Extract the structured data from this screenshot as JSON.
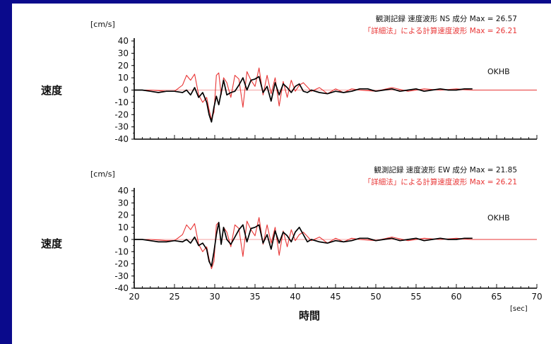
{
  "chart_data": [
    {
      "type": "line",
      "station": "OKHB",
      "row_label": "速度",
      "yunit": "[cm/s]",
      "ylim": [
        -40,
        40
      ],
      "yticks": [
        "40",
        "30",
        "20",
        "10",
        "0",
        "-10",
        "-20",
        "-30",
        "-40"
      ],
      "xlim": [
        20,
        70
      ],
      "legend": {
        "observed": "観測記録 速度波形 NS 成分 Max =  26.57",
        "computed": "「詳細法」による計算速度波形 Max =  26.21"
      },
      "series": [
        {
          "name": "観測記録 速度波形 NS 成分",
          "color": "#000000",
          "x": [
            20,
            21,
            22,
            23,
            24,
            25,
            26,
            26.5,
            27,
            27.5,
            28,
            28.5,
            29,
            29.3,
            29.6,
            29.9,
            30.2,
            30.5,
            30.8,
            31.1,
            31.5,
            32,
            32.5,
            33,
            33.5,
            34,
            34.5,
            35,
            35.5,
            36,
            36.5,
            37,
            37.5,
            38,
            38.5,
            39,
            39.5,
            40,
            40.5,
            41,
            41.5,
            42,
            43,
            44,
            45,
            46,
            47,
            48,
            49,
            50,
            51,
            52,
            53,
            54,
            55,
            56,
            57,
            58,
            59,
            60,
            61,
            62
          ],
          "y": [
            0,
            0,
            -1,
            -2,
            -1,
            -1,
            -2,
            0,
            -4,
            2,
            -6,
            -2,
            -10,
            -20,
            -26,
            -14,
            -5,
            -12,
            -2,
            8,
            -4,
            -2,
            -1,
            4,
            10,
            0,
            8,
            9,
            11,
            -2,
            3,
            -9,
            6,
            -4,
            5,
            2,
            -2,
            3,
            5,
            -1,
            -2,
            0,
            -2,
            -3,
            -1,
            -2,
            -1,
            1,
            1,
            -1,
            0,
            1,
            -1,
            0,
            1,
            -1,
            0,
            1,
            0,
            0,
            1,
            1
          ]
        },
        {
          "name": "「詳細法」による計算速度波形",
          "color": "#e83535",
          "x": [
            20,
            22,
            24,
            25,
            26,
            26.5,
            27,
            27.5,
            28,
            28.5,
            29,
            29.3,
            29.6,
            29.9,
            30.2,
            30.5,
            30.8,
            31.1,
            31.5,
            32,
            32.5,
            33,
            33.5,
            34,
            34.5,
            35,
            35.5,
            36,
            36.5,
            37,
            37.5,
            38,
            38.5,
            39,
            39.5,
            40,
            40.5,
            41,
            42,
            43,
            44,
            45,
            46,
            47,
            48,
            50,
            52,
            54,
            56,
            58,
            60,
            62,
            65,
            70
          ],
          "y": [
            0,
            0,
            -1,
            -1,
            4,
            12,
            8,
            13,
            -4,
            -10,
            -6,
            -16,
            -24,
            -18,
            12,
            14,
            -4,
            10,
            6,
            -6,
            12,
            9,
            -14,
            15,
            8,
            3,
            18,
            -4,
            12,
            -3,
            10,
            -13,
            7,
            -6,
            8,
            -1,
            4,
            6,
            -1,
            2,
            -3,
            1,
            -2,
            1,
            0,
            -1,
            2,
            -1,
            1,
            0,
            1,
            0,
            0,
            0
          ]
        }
      ]
    },
    {
      "type": "line",
      "station": "OKHB",
      "row_label": "速度",
      "yunit": "[cm/s]",
      "ylim": [
        -40,
        40
      ],
      "yticks": [
        "40",
        "30",
        "20",
        "10",
        "0",
        "-10",
        "-20",
        "-30",
        "-40"
      ],
      "xlim": [
        20,
        70
      ],
      "xticks": [
        "20",
        "25",
        "30",
        "35",
        "40",
        "45",
        "50",
        "55",
        "60",
        "65",
        "70"
      ],
      "xlabel": "時間",
      "xunit": "[sec]",
      "legend": {
        "observed": "観測記録 速度波形 EW 成分 Max =  21.85",
        "computed": "「詳細法」による計算速度波形 Max =  26.21"
      },
      "series": [
        {
          "name": "観測記録 速度波形 EW 成分",
          "color": "#000000",
          "x": [
            20,
            21,
            22,
            23,
            24,
            25,
            26,
            26.5,
            27,
            27.5,
            28,
            28.5,
            29,
            29.3,
            29.6,
            29.9,
            30.2,
            30.5,
            30.8,
            31.1,
            31.5,
            32,
            32.5,
            33,
            33.5,
            34,
            34.5,
            35,
            35.5,
            36,
            36.5,
            37,
            37.5,
            38,
            38.5,
            39,
            39.5,
            40,
            40.5,
            41,
            41.5,
            42,
            43,
            44,
            45,
            46,
            47,
            48,
            49,
            50,
            51,
            52,
            53,
            54,
            55,
            56,
            57,
            58,
            59,
            60,
            61,
            62
          ],
          "y": [
            0,
            0,
            -1,
            -2,
            -2,
            -1,
            -2,
            0,
            -3,
            2,
            -5,
            -3,
            -8,
            -18,
            -22,
            -10,
            4,
            14,
            -4,
            10,
            0,
            -4,
            2,
            8,
            12,
            -2,
            9,
            10,
            12,
            -3,
            4,
            -8,
            7,
            -3,
            6,
            3,
            -2,
            6,
            10,
            4,
            -2,
            0,
            -2,
            -3,
            -1,
            -2,
            -1,
            1,
            1,
            -1,
            0,
            1,
            -1,
            0,
            1,
            -1,
            0,
            1,
            0,
            0,
            1,
            1
          ]
        },
        {
          "name": "「詳細法」による計算速度波形",
          "color": "#e83535",
          "x": [
            20,
            22,
            24,
            25,
            26,
            26.5,
            27,
            27.5,
            28,
            28.5,
            29,
            29.3,
            29.6,
            29.9,
            30.2,
            30.5,
            30.8,
            31.1,
            31.5,
            32,
            32.5,
            33,
            33.5,
            34,
            34.5,
            35,
            35.5,
            36,
            36.5,
            37,
            37.5,
            38,
            38.5,
            39,
            39.5,
            40,
            40.5,
            41,
            42,
            43,
            44,
            45,
            46,
            47,
            48,
            50,
            52,
            54,
            56,
            58,
            60,
            62,
            65,
            70
          ],
          "y": [
            0,
            0,
            -1,
            -1,
            4,
            12,
            8,
            13,
            -4,
            -10,
            -6,
            -16,
            -24,
            -18,
            12,
            14,
            -4,
            10,
            6,
            -6,
            12,
            9,
            -14,
            15,
            8,
            3,
            18,
            -4,
            12,
            -3,
            10,
            -13,
            7,
            -6,
            8,
            -1,
            4,
            6,
            -1,
            2,
            -3,
            1,
            -2,
            1,
            0,
            -1,
            2,
            -1,
            1,
            0,
            1,
            0,
            0,
            0
          ]
        }
      ]
    }
  ]
}
